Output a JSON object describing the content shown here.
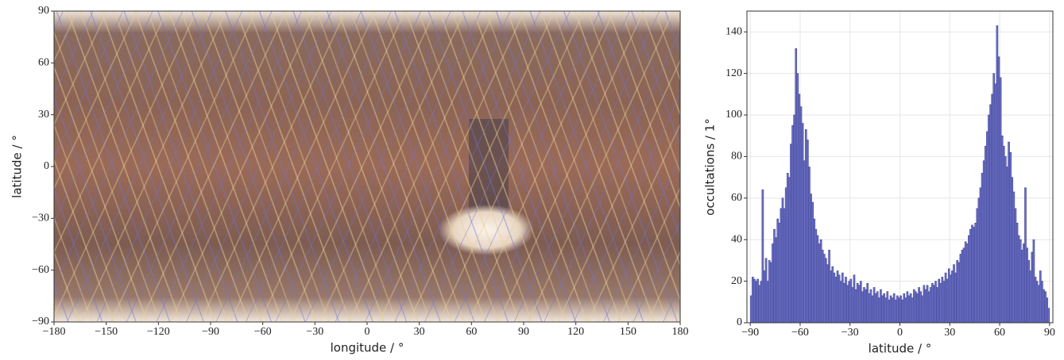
{
  "chart_data": [
    {
      "type": "map",
      "xlabel": "longitude / °",
      "ylabel": "latitude / °",
      "xlim": [
        -180,
        180
      ],
      "ylim": [
        -90,
        90
      ],
      "xticks": [
        {
          "value": -180,
          "label": "−180"
        },
        {
          "value": -150,
          "label": "−150"
        },
        {
          "value": -120,
          "label": "−120"
        },
        {
          "value": -90,
          "label": "−90"
        },
        {
          "value": -60,
          "label": "−60"
        },
        {
          "value": -30,
          "label": "−30"
        },
        0,
        30,
        60,
        90,
        120,
        150,
        180
      ],
      "yticks": [
        {
          "value": -90,
          "label": "−90"
        },
        {
          "value": -60,
          "label": "−60"
        },
        {
          "value": -30,
          "label": "−30"
        },
        0,
        30,
        60,
        90
      ]
    },
    {
      "type": "histogram",
      "xlabel": "latitude / °",
      "ylabel": "occultations / 1°",
      "color": "#6c70c6",
      "edgecolor": "#363a86",
      "grid": true,
      "xlim": [
        -92,
        92
      ],
      "ylim": [
        0,
        150
      ],
      "xticks": [
        {
          "value": -90,
          "label": "−90"
        },
        {
          "value": -60,
          "label": "−60"
        },
        {
          "value": -30,
          "label": "−30"
        },
        0,
        30,
        60,
        90
      ],
      "yticks": [
        0,
        20,
        40,
        60,
        80,
        100,
        120,
        140
      ],
      "bins": [
        -90,
        -89,
        -88,
        -87,
        -86,
        -85,
        -84,
        -83,
        -82,
        -81,
        -80,
        -79,
        -78,
        -77,
        -76,
        -75,
        -74,
        -73,
        -72,
        -71,
        -70,
        -69,
        -68,
        -67,
        -66,
        -65,
        -64,
        -63,
        -62,
        -61,
        -60,
        -59,
        -58,
        -57,
        -56,
        -55,
        -54,
        -53,
        -52,
        -51,
        -50,
        -49,
        -48,
        -47,
        -46,
        -45,
        -44,
        -43,
        -42,
        -41,
        -40,
        -39,
        -38,
        -37,
        -36,
        -35,
        -34,
        -33,
        -32,
        -31,
        -30,
        -29,
        -28,
        -27,
        -26,
        -25,
        -24,
        -23,
        -22,
        -21,
        -20,
        -19,
        -18,
        -17,
        -16,
        -15,
        -14,
        -13,
        -12,
        -11,
        -10,
        -9,
        -8,
        -7,
        -6,
        -5,
        -4,
        -3,
        -2,
        -1,
        0,
        1,
        2,
        3,
        4,
        5,
        6,
        7,
        8,
        9,
        10,
        11,
        12,
        13,
        14,
        15,
        16,
        17,
        18,
        19,
        20,
        21,
        22,
        23,
        24,
        25,
        26,
        27,
        28,
        29,
        30,
        31,
        32,
        33,
        34,
        35,
        36,
        37,
        38,
        39,
        40,
        41,
        42,
        43,
        44,
        45,
        46,
        47,
        48,
        49,
        50,
        51,
        52,
        53,
        54,
        55,
        56,
        57,
        58,
        59,
        60,
        61,
        62,
        63,
        64,
        65,
        66,
        67,
        68,
        69,
        70,
        71,
        72,
        73,
        74,
        75,
        76,
        77,
        78,
        79,
        80,
        81,
        82,
        83,
        84,
        85,
        86,
        87,
        88,
        89,
        90
      ],
      "values": [
        13,
        22,
        21,
        20,
        21,
        18,
        20,
        64,
        25,
        31,
        20,
        30,
        29,
        38,
        45,
        41,
        50,
        48,
        55,
        60,
        55,
        65,
        72,
        70,
        86,
        95,
        100,
        132,
        120,
        110,
        104,
        96,
        78,
        93,
        88,
        75,
        62,
        58,
        50,
        45,
        42,
        38,
        40,
        35,
        33,
        31,
        28,
        35,
        25,
        27,
        24,
        22,
        25,
        23,
        20,
        24,
        19,
        22,
        18,
        20,
        21,
        17,
        23,
        16,
        19,
        18,
        20,
        15,
        17,
        16,
        19,
        14,
        16,
        13,
        17,
        14,
        15,
        12,
        16,
        13,
        14,
        12,
        15,
        11,
        13,
        12,
        14,
        11,
        13,
        12,
        13,
        11,
        14,
        12,
        15,
        13,
        14,
        12,
        16,
        15,
        14,
        17,
        15,
        13,
        18,
        16,
        18,
        15,
        17,
        19,
        18,
        20,
        17,
        21,
        19,
        22,
        20,
        24,
        21,
        26,
        23,
        25,
        28,
        24,
        30,
        29,
        33,
        35,
        36,
        39,
        38,
        42,
        45,
        47,
        46,
        48,
        55,
        60,
        65,
        72,
        78,
        85,
        92,
        100,
        105,
        110,
        120,
        115,
        143,
        128,
        118,
        90,
        85,
        80,
        75,
        87,
        82,
        70,
        63,
        55,
        48,
        42,
        40,
        35,
        38,
        65,
        36,
        30,
        25,
        34,
        40,
        22,
        20,
        18,
        25,
        20,
        16,
        15,
        12,
        7
      ]
    }
  ]
}
